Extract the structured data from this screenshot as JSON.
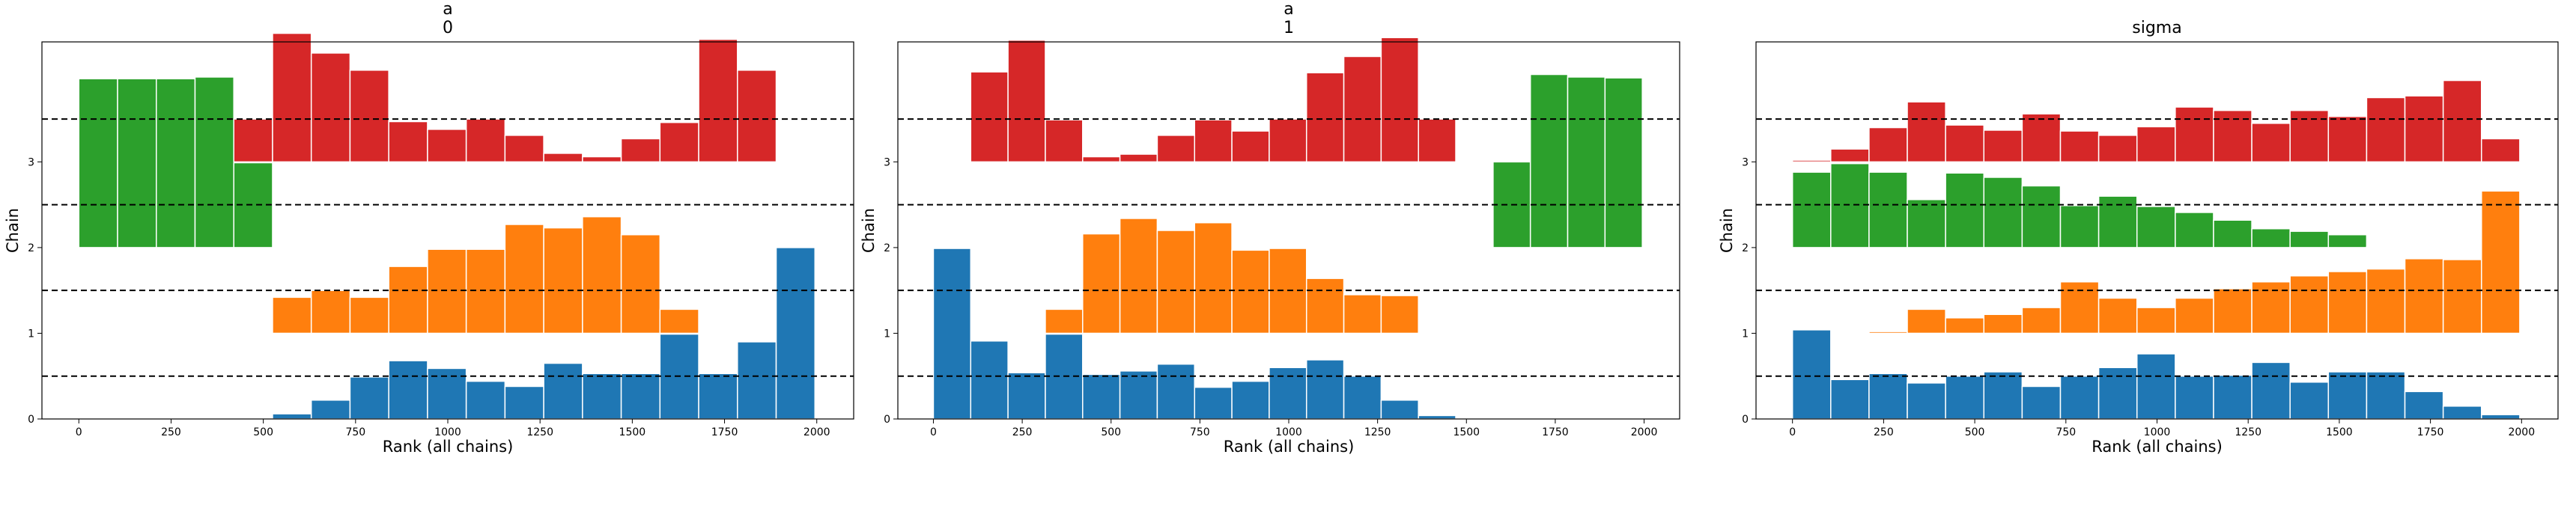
{
  "colors": {
    "chain0": "#1f77b4",
    "chain1": "#ff7f0e",
    "chain2": "#2ca02c",
    "chain3": "#d62728",
    "reference_line": "#000000"
  },
  "chart_data": [
    {
      "type": "bar",
      "chart_kind": "rank plot (stacked rank histograms per chain)",
      "title": "a\n0",
      "xlabel": "Rank (all chains)",
      "ylabel": "Chain",
      "xlim": [
        -100,
        2100
      ],
      "ylim": [
        0,
        4.4
      ],
      "xticks": [
        0,
        250,
        500,
        750,
        1000,
        1250,
        1500,
        1750,
        2000
      ],
      "yticks": [
        0,
        1,
        2,
        3
      ],
      "reference_lines": [
        0.5,
        1.5,
        2.5,
        3.5
      ],
      "bin_width": 105,
      "bin_starts": [
        0,
        105,
        210,
        315,
        420,
        525,
        630,
        735,
        840,
        945,
        1050,
        1155,
        1260,
        1365,
        1470,
        1575,
        1680,
        1785,
        1890
      ],
      "series": [
        {
          "chain": 0,
          "offset": 0,
          "values": [
            0,
            0,
            0,
            0,
            0.01,
            0.06,
            0.22,
            0.49,
            0.68,
            0.59,
            0.44,
            0.38,
            0.65,
            0.53,
            0.53,
            0.99,
            0.53,
            0.9,
            2.0
          ]
        },
        {
          "chain": 1,
          "offset": 1,
          "values": [
            0,
            0,
            0,
            0,
            0,
            0.42,
            0.5,
            0.42,
            0.78,
            0.98,
            0.98,
            1.27,
            1.23,
            1.36,
            1.15,
            0.28,
            0,
            0,
            0
          ]
        },
        {
          "chain": 2,
          "offset": 2,
          "values": [
            1.97,
            1.97,
            1.97,
            1.99,
            0.99,
            0,
            0,
            0,
            0,
            0,
            0,
            0,
            0,
            0,
            0,
            0,
            0,
            0,
            0
          ]
        },
        {
          "chain": 3,
          "offset": 3,
          "values": [
            0,
            0,
            0,
            0,
            0.5,
            1.5,
            1.27,
            1.07,
            0.47,
            0.38,
            0.5,
            0.31,
            0.1,
            0.06,
            0.27,
            0.46,
            1.43,
            1.07,
            0
          ]
        }
      ]
    },
    {
      "type": "bar",
      "chart_kind": "rank plot (stacked rank histograms per chain)",
      "title": "a\n1",
      "xlabel": "Rank (all chains)",
      "ylabel": "Chain",
      "xlim": [
        -100,
        2100
      ],
      "ylim": [
        0,
        4.4
      ],
      "xticks": [
        0,
        250,
        500,
        750,
        1000,
        1250,
        1500,
        1750,
        2000
      ],
      "yticks": [
        0,
        1,
        2,
        3
      ],
      "reference_lines": [
        0.5,
        1.5,
        2.5,
        3.5
      ],
      "bin_width": 105,
      "bin_starts": [
        0,
        105,
        210,
        315,
        420,
        525,
        630,
        735,
        840,
        945,
        1050,
        1155,
        1260,
        1365,
        1470,
        1575,
        1680,
        1785,
        1890
      ],
      "series": [
        {
          "chain": 0,
          "offset": 0,
          "values": [
            1.99,
            0.91,
            0.54,
            0.99,
            0.52,
            0.56,
            0.64,
            0.37,
            0.44,
            0.6,
            0.69,
            0.5,
            0.22,
            0.04,
            0,
            0,
            0,
            0,
            0
          ]
        },
        {
          "chain": 1,
          "offset": 1,
          "values": [
            0,
            0,
            0,
            0.28,
            1.16,
            1.34,
            1.2,
            1.29,
            0.97,
            0.99,
            0.64,
            0.45,
            0.44,
            0,
            0,
            0,
            0,
            0,
            0
          ]
        },
        {
          "chain": 2,
          "offset": 2,
          "values": [
            0,
            0,
            0,
            0,
            0,
            0,
            0,
            0,
            0,
            0,
            0,
            0,
            0,
            0,
            0,
            1.0,
            2.02,
            1.99,
            1.98
          ]
        },
        {
          "chain": 3,
          "offset": 3,
          "values": [
            0,
            1.05,
            1.42,
            0.49,
            0.06,
            0.09,
            0.31,
            0.49,
            0.36,
            0.5,
            1.04,
            1.23,
            1.45,
            0.5,
            0,
            0,
            0,
            0,
            0
          ]
        }
      ]
    },
    {
      "type": "bar",
      "chart_kind": "rank plot (stacked rank histograms per chain)",
      "title": "sigma",
      "xlabel": "Rank (all chains)",
      "ylabel": "Chain",
      "xlim": [
        -100,
        2100
      ],
      "ylim": [
        0,
        4.4
      ],
      "xticks": [
        0,
        250,
        500,
        750,
        1000,
        1250,
        1500,
        1750,
        2000
      ],
      "yticks": [
        0,
        1,
        2,
        3
      ],
      "reference_lines": [
        0.5,
        1.5,
        2.5,
        3.5
      ],
      "bin_width": 105,
      "bin_starts": [
        0,
        105,
        210,
        315,
        420,
        525,
        630,
        735,
        840,
        945,
        1050,
        1155,
        1260,
        1365,
        1470,
        1575,
        1680,
        1785,
        1890
      ],
      "series": [
        {
          "chain": 0,
          "offset": 0,
          "values": [
            1.04,
            0.46,
            0.53,
            0.42,
            0.5,
            0.55,
            0.38,
            0.5,
            0.6,
            0.76,
            0.5,
            0.51,
            0.66,
            0.43,
            0.55,
            0.55,
            0.32,
            0.15,
            0.05
          ]
        },
        {
          "chain": 1,
          "offset": 1,
          "values": [
            0,
            0,
            0.02,
            0.28,
            0.18,
            0.22,
            0.3,
            0.6,
            0.41,
            0.3,
            0.41,
            0.52,
            0.6,
            0.67,
            0.72,
            0.75,
            0.87,
            0.86,
            1.66
          ]
        },
        {
          "chain": 2,
          "offset": 2,
          "values": [
            0.88,
            0.98,
            0.88,
            0.56,
            0.87,
            0.82,
            0.72,
            0.49,
            0.6,
            0.48,
            0.41,
            0.32,
            0.22,
            0.19,
            0.15,
            0.01,
            0,
            0,
            0
          ]
        },
        {
          "chain": 3,
          "offset": 3,
          "values": [
            0.02,
            0.15,
            0.4,
            0.7,
            0.43,
            0.37,
            0.56,
            0.36,
            0.31,
            0.41,
            0.64,
            0.6,
            0.45,
            0.6,
            0.53,
            0.75,
            0.77,
            0.95,
            0.27
          ]
        }
      ]
    }
  ]
}
